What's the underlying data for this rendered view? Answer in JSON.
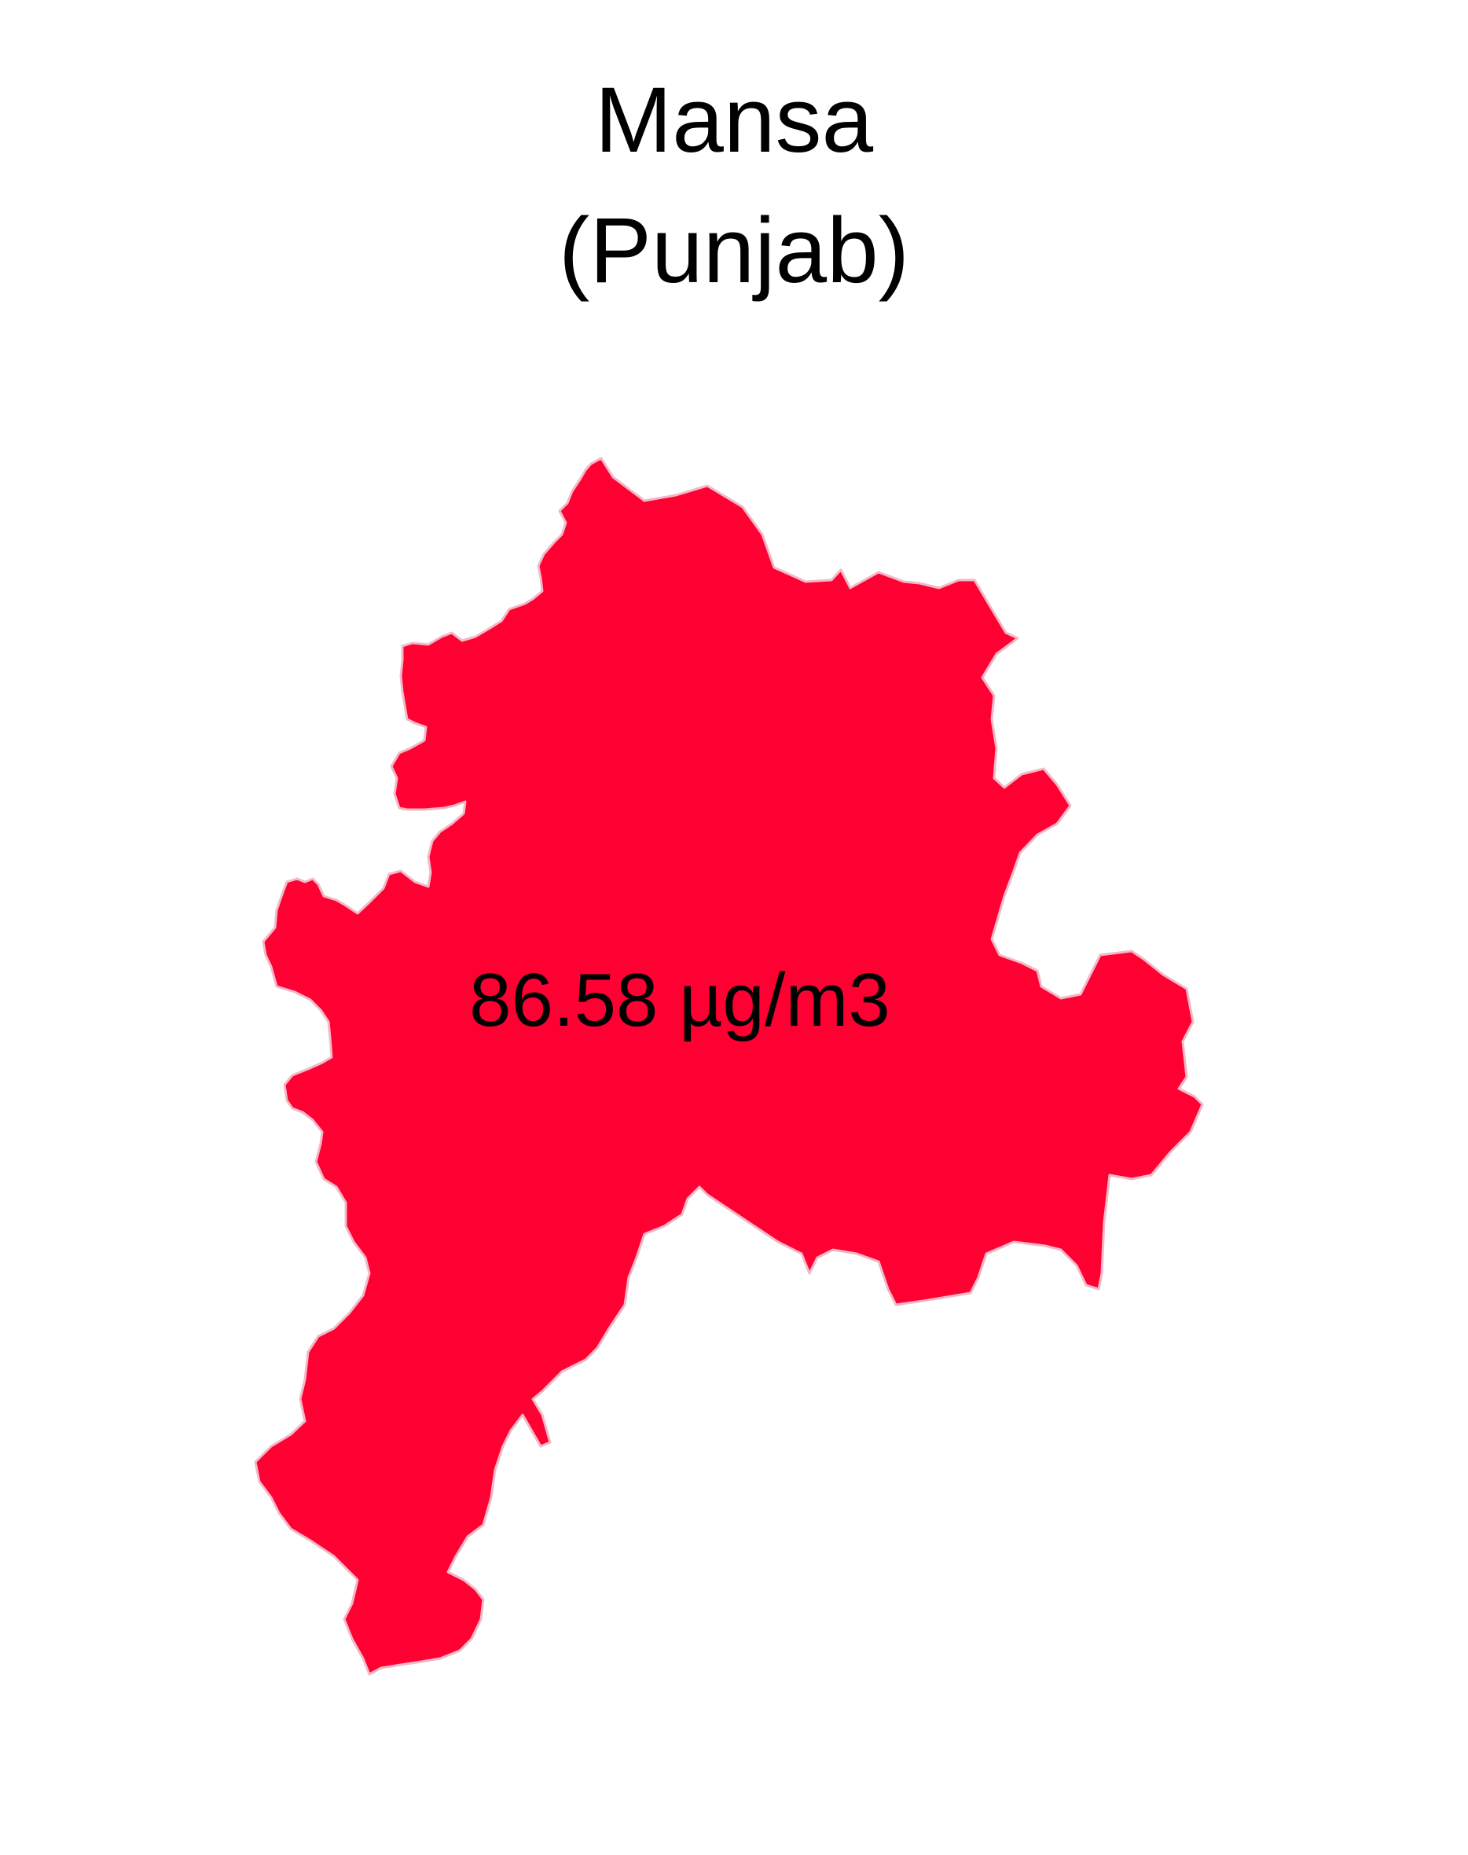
{
  "title": "Mansa",
  "subtitle": "(Punjab)",
  "region": {
    "name": "Mansa",
    "value_label": "86.58 µg/m3",
    "value": 86.58,
    "unit": "µg/m3",
    "fill_color": "#FF0033",
    "border_color": "#F2B8C6"
  }
}
